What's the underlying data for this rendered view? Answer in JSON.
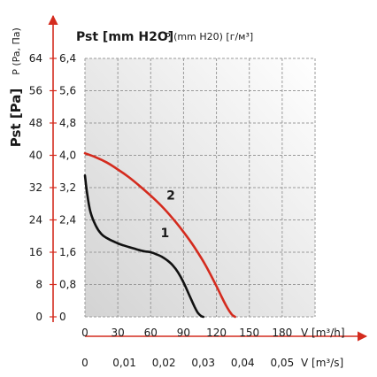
{
  "chart_data": {
    "type": "line",
    "title": "",
    "y_axes": {
      "outer_label": "Pst [Pa]",
      "outer_ticks": [
        "0",
        "8",
        "16",
        "24",
        "32",
        "40",
        "48",
        "56",
        "64"
      ],
      "outer_values": [
        0,
        8,
        16,
        24,
        32,
        40,
        48,
        56,
        64
      ],
      "inner_label": "Pst [mm H2O]",
      "inner_ticks": [
        "0",
        "0,8",
        "1,6",
        "2,4",
        "3,2",
        "4,0",
        "4,8",
        "5,6",
        "6,4"
      ],
      "top_secondary_label": "P (mm H20) [г/м³]",
      "side_secondary_label": "P (Pa, Па)"
    },
    "ylim": [
      0,
      6.4
    ],
    "x_axes": {
      "primary_label": "V [m³/h]",
      "primary_ticks": [
        "0",
        "30",
        "60",
        "90",
        "120",
        "150",
        "180"
      ],
      "primary_values": [
        0,
        30,
        60,
        90,
        120,
        150,
        180
      ],
      "secondary_label": "V [m³/s]",
      "secondary_ticks": [
        "0",
        "0,01",
        "0,02",
        "0,03",
        "0,04",
        "0,05"
      ],
      "secondary_values": [
        0,
        0.01,
        0.02,
        0.03,
        0.04,
        0.05
      ]
    },
    "xlim": [
      0,
      210
    ],
    "grid": true,
    "series": [
      {
        "name": "1",
        "color": "#111111",
        "x": [
          0,
          2,
          5,
          10,
          15,
          20,
          25,
          30,
          35,
          40,
          45,
          50,
          55,
          60,
          65,
          70,
          75,
          80,
          85,
          90,
          95,
          100,
          103,
          106,
          108
        ],
        "y": [
          3.5,
          3.05,
          2.6,
          2.25,
          2.05,
          1.95,
          1.88,
          1.82,
          1.77,
          1.73,
          1.69,
          1.65,
          1.62,
          1.6,
          1.55,
          1.49,
          1.4,
          1.28,
          1.1,
          0.85,
          0.55,
          0.25,
          0.1,
          0.02,
          0
        ]
      },
      {
        "name": "2",
        "color": "#d42b1e",
        "x": [
          0,
          10,
          20,
          30,
          40,
          50,
          60,
          70,
          80,
          90,
          100,
          110,
          120,
          125,
          130,
          134,
          137
        ],
        "y": [
          4.05,
          3.95,
          3.82,
          3.65,
          3.46,
          3.24,
          3.0,
          2.74,
          2.44,
          2.1,
          1.72,
          1.28,
          0.76,
          0.48,
          0.22,
          0.06,
          0
        ]
      }
    ]
  }
}
